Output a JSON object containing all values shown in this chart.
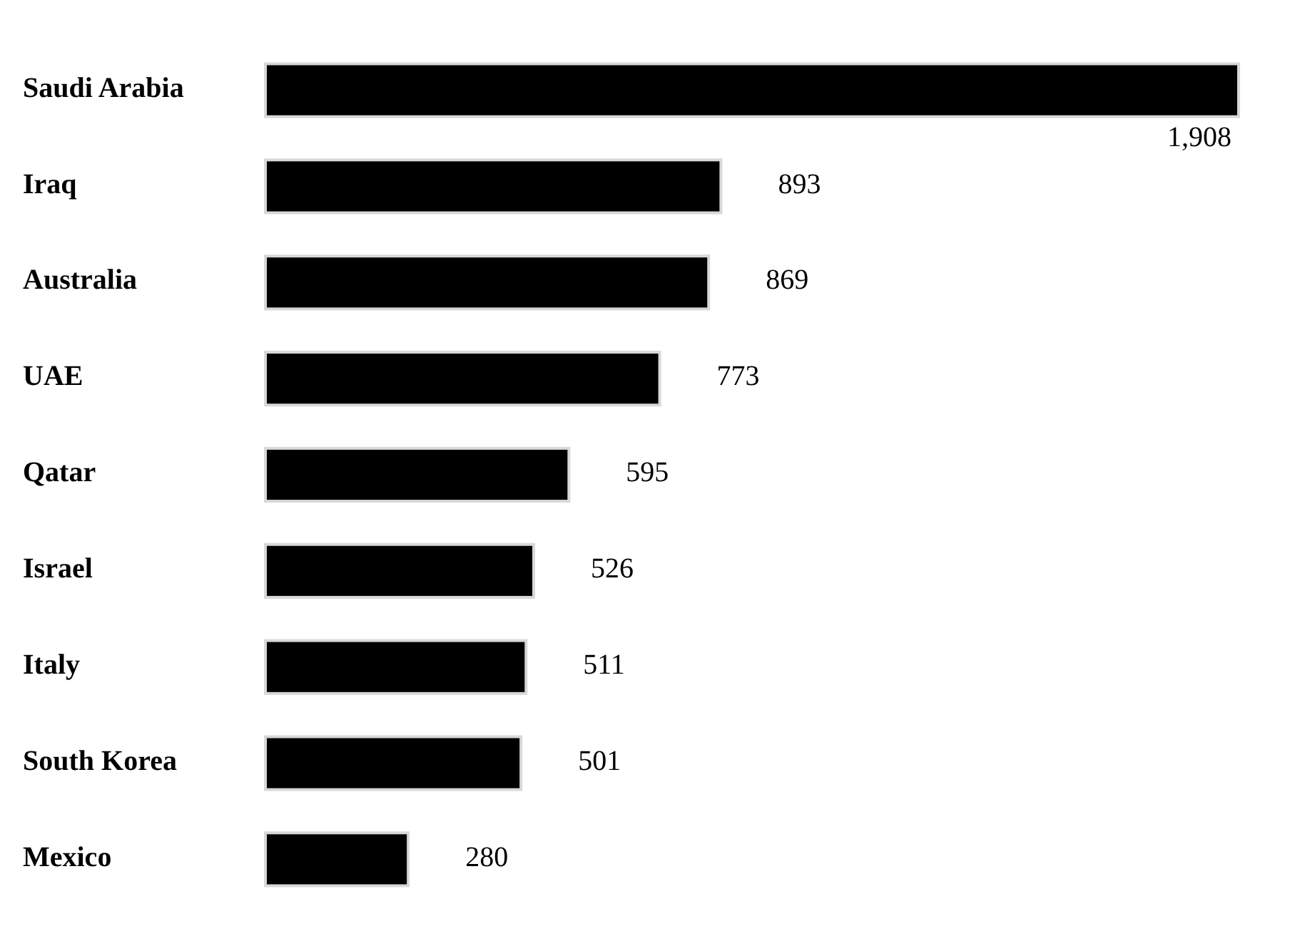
{
  "chart_data": {
    "type": "bar",
    "orientation": "horizontal",
    "categories": [
      "Saudi Arabia",
      "Iraq",
      "Australia",
      "UAE",
      "Qatar",
      "Israel",
      "Italy",
      "South Korea",
      "Mexico"
    ],
    "values": [
      1908,
      893,
      869,
      773,
      595,
      526,
      511,
      501,
      280
    ],
    "value_labels": [
      "1,908",
      "893",
      "869",
      "773",
      "595",
      "526",
      "511",
      "501",
      "280"
    ],
    "color": "#000000",
    "tick_labels": "y"
  }
}
